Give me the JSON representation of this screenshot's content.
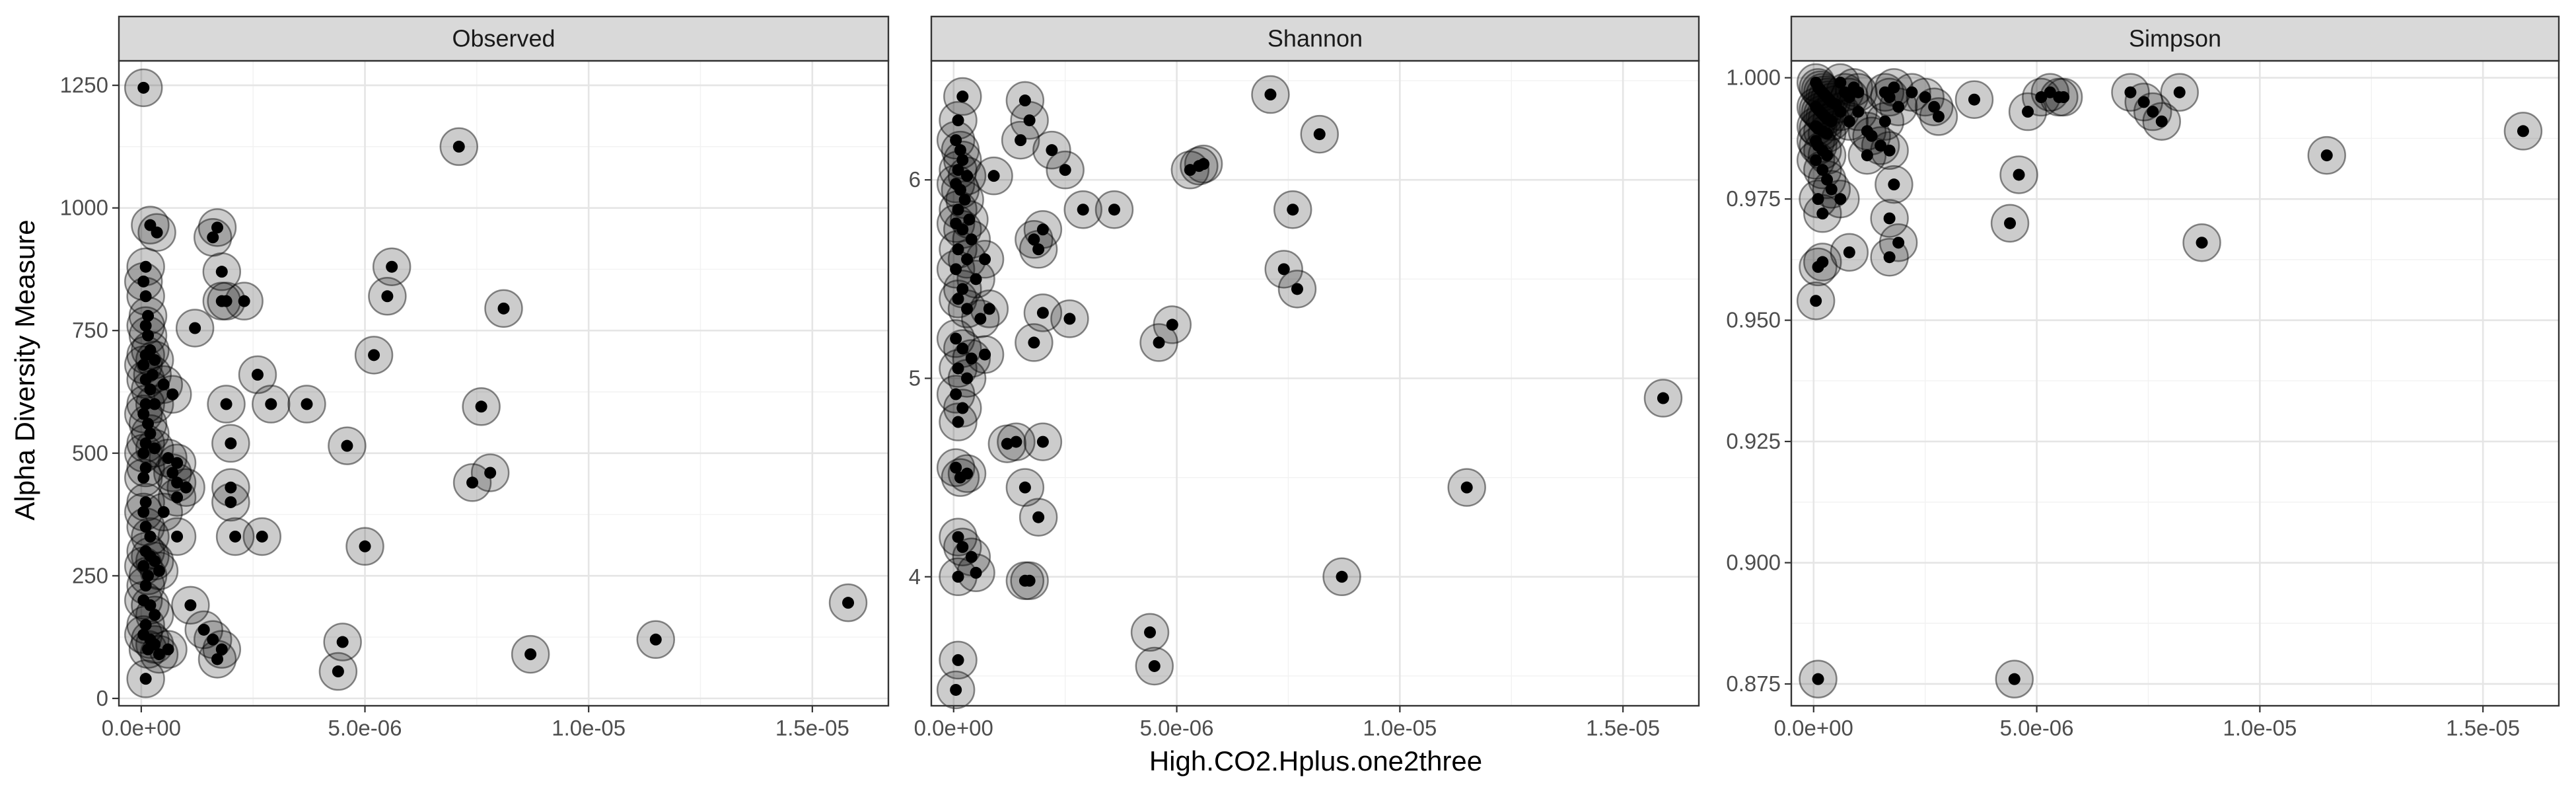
{
  "colors": {
    "halo": "#000000",
    "point": "#000000",
    "strip": "#d9d9d9",
    "border": "#333333",
    "grid": "#e5e5e5"
  },
  "chart_data": [
    {
      "type": "scatter",
      "title": "Observed",
      "xlabel": "High.CO2.Hplus.one2three",
      "ylabel": "Alpha Diversity Measure",
      "xlim": [
        -5e-07,
        1.67e-05
      ],
      "ylim": [
        -15,
        1300
      ],
      "xticks": [
        0,
        5e-06,
        1e-05,
        1.5e-05
      ],
      "xtick_labels": [
        "0.0e+00",
        "5.0e-06",
        "1.0e-05",
        "1.5e-05"
      ],
      "yticks": [
        0,
        250,
        500,
        750,
        1000,
        1250
      ],
      "ytick_labels": [
        "0",
        "250",
        "500",
        "750",
        "1000",
        "1250"
      ],
      "grid": true,
      "points": [
        [
          5e-08,
          1245
        ],
        [
          1e-07,
          40
        ],
        [
          2e-07,
          965
        ],
        [
          3.5e-07,
          950
        ],
        [
          1e-07,
          880
        ],
        [
          5e-08,
          850
        ],
        [
          1e-07,
          820
        ],
        [
          1.5e-07,
          780
        ],
        [
          1e-07,
          760
        ],
        [
          1.5e-07,
          740
        ],
        [
          2e-07,
          710
        ],
        [
          1e-07,
          700
        ],
        [
          3e-07,
          690
        ],
        [
          5e-08,
          680
        ],
        [
          2.5e-07,
          660
        ],
        [
          1e-07,
          650
        ],
        [
          2e-07,
          630
        ],
        [
          3e-07,
          600
        ],
        [
          5e-07,
          640
        ],
        [
          7e-07,
          620
        ],
        [
          1e-07,
          600
        ],
        [
          5e-08,
          580
        ],
        [
          1.5e-07,
          560
        ],
        [
          2e-07,
          540
        ],
        [
          1e-07,
          520
        ],
        [
          3e-07,
          510
        ],
        [
          5e-08,
          500
        ],
        [
          6e-07,
          490
        ],
        [
          8e-07,
          480
        ],
        [
          1e-07,
          470
        ],
        [
          7e-07,
          460
        ],
        [
          5e-08,
          450
        ],
        [
          8e-07,
          440
        ],
        [
          1e-06,
          430
        ],
        [
          1e-07,
          400
        ],
        [
          5e-08,
          380
        ],
        [
          8e-07,
          410
        ],
        [
          5e-07,
          380
        ],
        [
          1e-07,
          350
        ],
        [
          2e-07,
          330
        ],
        [
          8e-07,
          330
        ],
        [
          1e-07,
          300
        ],
        [
          2e-07,
          290
        ],
        [
          3e-07,
          280
        ],
        [
          5e-08,
          270
        ],
        [
          1.5e-07,
          250
        ],
        [
          4e-07,
          260
        ],
        [
          1e-07,
          230
        ],
        [
          5e-08,
          200
        ],
        [
          2e-07,
          190
        ],
        [
          3e-07,
          170
        ],
        [
          1e-07,
          150
        ],
        [
          5e-08,
          130
        ],
        [
          2e-07,
          120
        ],
        [
          3e-07,
          110
        ],
        [
          1.5e-07,
          100
        ],
        [
          6e-07,
          100
        ],
        [
          4e-07,
          90
        ],
        [
          1.1e-06,
          190
        ],
        [
          1.4e-06,
          140
        ],
        [
          1.6e-06,
          120
        ],
        [
          1.8e-06,
          100
        ],
        [
          1.7e-06,
          80
        ],
        [
          1.2e-06,
          755
        ],
        [
          1.6e-06,
          940
        ],
        [
          1.7e-06,
          960
        ],
        [
          1.8e-06,
          870
        ],
        [
          1.8e-06,
          810
        ],
        [
          1.9e-06,
          810
        ],
        [
          1.9e-06,
          600
        ],
        [
          2e-06,
          520
        ],
        [
          2.3e-06,
          810
        ],
        [
          2e-06,
          430
        ],
        [
          2e-06,
          400
        ],
        [
          2.1e-06,
          330
        ],
        [
          2.6e-06,
          660
        ],
        [
          2.9e-06,
          600
        ],
        [
          3.7e-06,
          600
        ],
        [
          2.7e-06,
          330
        ],
        [
          4.6e-06,
          515
        ],
        [
          4.5e-06,
          115
        ],
        [
          4.4e-06,
          55
        ],
        [
          5e-06,
          310
        ],
        [
          5.2e-06,
          700
        ],
        [
          5.5e-06,
          820
        ],
        [
          5.6e-06,
          880
        ],
        [
          7.1e-06,
          1125
        ],
        [
          7.6e-06,
          595
        ],
        [
          8.1e-06,
          795
        ],
        [
          7.4e-06,
          440
        ],
        [
          7.8e-06,
          460
        ],
        [
          8.7e-06,
          90
        ],
        [
          1.15e-05,
          120
        ],
        [
          1.58e-05,
          195
        ]
      ]
    },
    {
      "type": "scatter",
      "title": "Shannon",
      "xlabel": "High.CO2.Hplus.one2three",
      "xlim": [
        -5e-07,
        1.67e-05
      ],
      "ylim": [
        3.35,
        6.6
      ],
      "xticks": [
        0,
        5e-06,
        1e-05,
        1.5e-05
      ],
      "xtick_labels": [
        "0.0e+00",
        "5.0e-06",
        "1.0e-05",
        "1.5e-05"
      ],
      "yticks": [
        4,
        5,
        6
      ],
      "ytick_labels": [
        "4",
        "5",
        "6"
      ],
      "grid": true,
      "points": [
        [
          2e-07,
          6.42
        ],
        [
          1e-07,
          6.3
        ],
        [
          5e-08,
          6.2
        ],
        [
          1.5e-07,
          6.15
        ],
        [
          2e-07,
          6.1
        ],
        [
          1e-07,
          6.05
        ],
        [
          3e-07,
          6.02
        ],
        [
          5e-08,
          5.98
        ],
        [
          1.5e-07,
          5.95
        ],
        [
          2.5e-07,
          5.9
        ],
        [
          1e-07,
          5.85
        ],
        [
          3.5e-07,
          5.8
        ],
        [
          5e-08,
          5.78
        ],
        [
          2e-07,
          5.75
        ],
        [
          4e-07,
          5.7
        ],
        [
          1e-07,
          5.65
        ],
        [
          3e-07,
          5.6
        ],
        [
          5e-08,
          5.55
        ],
        [
          5e-07,
          5.5
        ],
        [
          2e-07,
          5.45
        ],
        [
          1e-07,
          5.4
        ],
        [
          3e-07,
          5.35
        ],
        [
          6e-07,
          5.3
        ],
        [
          5e-08,
          5.2
        ],
        [
          2e-07,
          5.15
        ],
        [
          4e-07,
          5.1
        ],
        [
          1e-07,
          5.05
        ],
        [
          3e-07,
          5.0
        ],
        [
          5e-08,
          4.92
        ],
        [
          2e-07,
          4.85
        ],
        [
          1e-07,
          4.78
        ],
        [
          5e-08,
          4.55
        ],
        [
          1.5e-07,
          4.5
        ],
        [
          3e-07,
          4.52
        ],
        [
          1e-07,
          4.2
        ],
        [
          2e-07,
          4.15
        ],
        [
          4e-07,
          4.1
        ],
        [
          1e-07,
          4.0
        ],
        [
          5e-07,
          4.02
        ],
        [
          1e-07,
          3.58
        ],
        [
          5e-08,
          3.43
        ],
        [
          7e-07,
          5.6
        ],
        [
          8e-07,
          5.35
        ],
        [
          9e-07,
          6.02
        ],
        [
          7e-07,
          5.12
        ],
        [
          1.2e-06,
          4.67
        ],
        [
          1.4e-06,
          4.68
        ],
        [
          1.6e-06,
          6.4
        ],
        [
          1.5e-06,
          6.2
        ],
        [
          1.7e-06,
          6.3
        ],
        [
          1.8e-06,
          5.7
        ],
        [
          1.9e-06,
          5.65
        ],
        [
          2e-06,
          5.75
        ],
        [
          1.8e-06,
          5.18
        ],
        [
          2e-06,
          5.33
        ],
        [
          1.6e-06,
          4.45
        ],
        [
          1.9e-06,
          4.3
        ],
        [
          2e-06,
          4.68
        ],
        [
          1.6e-06,
          3.98
        ],
        [
          1.7e-06,
          3.98
        ],
        [
          2.2e-06,
          6.15
        ],
        [
          2.5e-06,
          6.05
        ],
        [
          2.9e-06,
          5.85
        ],
        [
          3.6e-06,
          5.85
        ],
        [
          2.6e-06,
          5.3
        ],
        [
          4.6e-06,
          5.18
        ],
        [
          4.9e-06,
          5.27
        ],
        [
          4.4e-06,
          3.72
        ],
        [
          4.5e-06,
          3.55
        ],
        [
          5.3e-06,
          6.05
        ],
        [
          5.5e-06,
          6.07
        ],
        [
          5.6e-06,
          6.08
        ],
        [
          7.1e-06,
          6.43
        ],
        [
          7.6e-06,
          5.85
        ],
        [
          8.2e-06,
          6.23
        ],
        [
          7.4e-06,
          5.55
        ],
        [
          7.7e-06,
          5.45
        ],
        [
          8.7e-06,
          4.0
        ],
        [
          1.15e-05,
          4.45
        ],
        [
          1.59e-05,
          4.9
        ]
      ]
    },
    {
      "type": "scatter",
      "title": "Simpson",
      "xlabel": "High.CO2.Hplus.one2three",
      "xlim": [
        -5e-07,
        1.67e-05
      ],
      "ylim": [
        0.8705,
        1.0035
      ],
      "xticks": [
        0,
        5e-06,
        1e-05,
        1.5e-05
      ],
      "xtick_labels": [
        "0.0e+00",
        "5.0e-06",
        "1.0e-05",
        "1.5e-05"
      ],
      "yticks": [
        0.875,
        0.9,
        0.925,
        0.95,
        0.975,
        1.0
      ],
      "ytick_labels": [
        "0.875",
        "0.900",
        "0.925",
        "0.950",
        "0.975",
        "1.000"
      ],
      "grid": true,
      "points": [
        [
          5e-08,
          0.999
        ],
        [
          1e-07,
          0.998
        ],
        [
          1.5e-07,
          0.9975
        ],
        [
          2e-07,
          0.997
        ],
        [
          2.5e-07,
          0.9965
        ],
        [
          3e-07,
          0.996
        ],
        [
          3.5e-07,
          0.9955
        ],
        [
          4e-07,
          0.995
        ],
        [
          5e-07,
          0.9945
        ],
        [
          5e-08,
          0.994
        ],
        [
          1e-07,
          0.9935
        ],
        [
          1.5e-07,
          0.993
        ],
        [
          2e-07,
          0.9925
        ],
        [
          2.5e-07,
          0.992
        ],
        [
          3e-07,
          0.9915
        ],
        [
          4e-07,
          0.991
        ],
        [
          5e-08,
          0.99
        ],
        [
          1e-07,
          0.9895
        ],
        [
          2e-07,
          0.989
        ],
        [
          3e-07,
          0.9885
        ],
        [
          5e-08,
          0.987
        ],
        [
          1e-07,
          0.986
        ],
        [
          2e-07,
          0.985
        ],
        [
          3e-07,
          0.984
        ],
        [
          5e-08,
          0.983
        ],
        [
          2e-07,
          0.981
        ],
        [
          3e-07,
          0.979
        ],
        [
          4e-07,
          0.977
        ],
        [
          1e-07,
          0.975
        ],
        [
          2e-07,
          0.972
        ],
        [
          6e-07,
          0.975
        ],
        [
          8e-07,
          0.964
        ],
        [
          1e-07,
          0.961
        ],
        [
          2e-07,
          0.962
        ],
        [
          5e-08,
          0.954
        ],
        [
          1e-07,
          0.876
        ],
        [
          6e-07,
          0.999
        ],
        [
          7e-07,
          0.997
        ],
        [
          8e-07,
          0.996
        ],
        [
          9e-07,
          0.998
        ],
        [
          1e-06,
          0.997
        ],
        [
          6e-07,
          0.993
        ],
        [
          8e-07,
          0.991
        ],
        [
          1e-06,
          0.993
        ],
        [
          1.2e-06,
          0.989
        ],
        [
          1.3e-06,
          0.988
        ],
        [
          1.5e-06,
          0.986
        ],
        [
          1.2e-06,
          0.984
        ],
        [
          1.6e-06,
          0.997
        ],
        [
          1.7e-06,
          0.996
        ],
        [
          1.8e-06,
          0.998
        ],
        [
          1.9e-06,
          0.994
        ],
        [
          1.6e-06,
          0.991
        ],
        [
          1.7e-06,
          0.985
        ],
        [
          1.8e-06,
          0.978
        ],
        [
          1.7e-06,
          0.971
        ],
        [
          1.9e-06,
          0.966
        ],
        [
          1.7e-06,
          0.963
        ],
        [
          2.2e-06,
          0.997
        ],
        [
          2.5e-06,
          0.996
        ],
        [
          2.7e-06,
          0.994
        ],
        [
          2.8e-06,
          0.992
        ],
        [
          3.6e-06,
          0.9955
        ],
        [
          4.6e-06,
          0.98
        ],
        [
          4.4e-06,
          0.97
        ],
        [
          4.8e-06,
          0.993
        ],
        [
          5.1e-06,
          0.996
        ],
        [
          5.3e-06,
          0.997
        ],
        [
          5.6e-06,
          0.996
        ],
        [
          5.5e-06,
          0.996
        ],
        [
          4.5e-06,
          0.876
        ],
        [
          7.1e-06,
          0.997
        ],
        [
          7.4e-06,
          0.995
        ],
        [
          7.6e-06,
          0.993
        ],
        [
          7.8e-06,
          0.991
        ],
        [
          8.2e-06,
          0.997
        ],
        [
          8.7e-06,
          0.966
        ],
        [
          1.15e-05,
          0.984
        ],
        [
          1.59e-05,
          0.989
        ]
      ]
    }
  ]
}
